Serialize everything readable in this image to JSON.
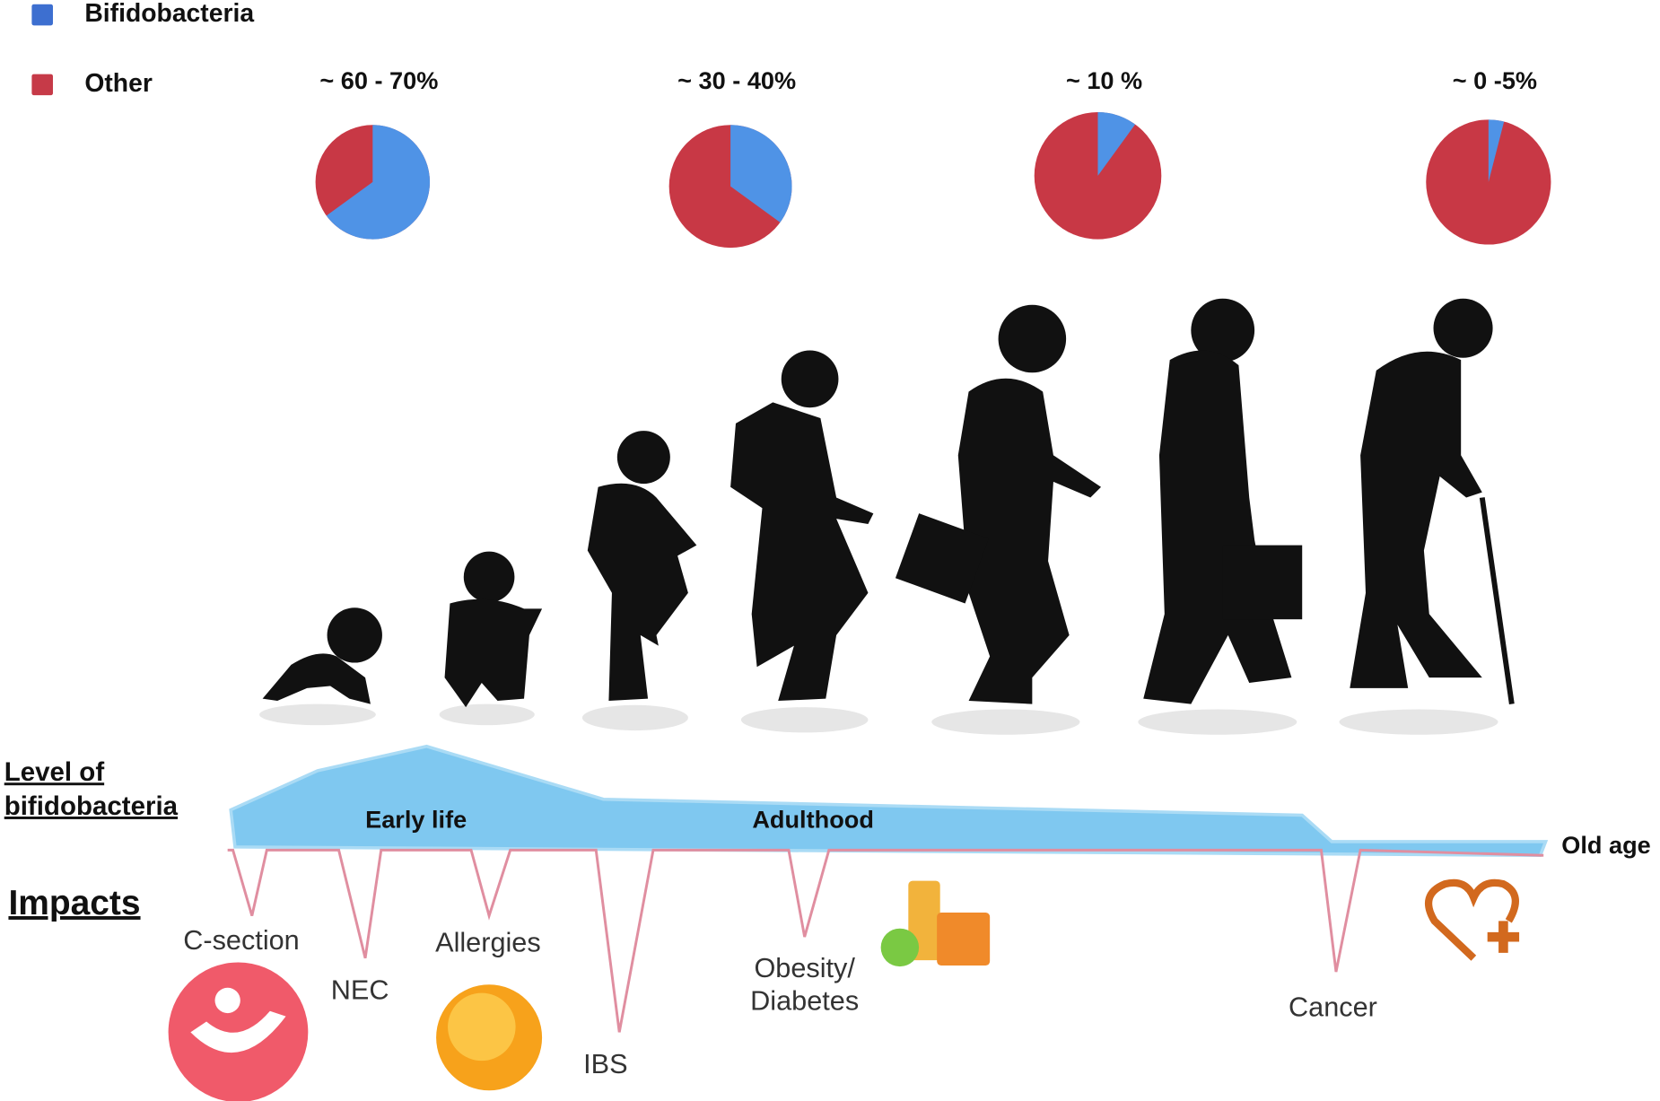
{
  "legend": [
    {
      "label": "Bifidobacteria",
      "color": "#3d6fd0"
    },
    {
      "label": "Other",
      "color": "#c63a48"
    }
  ],
  "pies": [
    {
      "label": "~ 60 - 70%",
      "value": 65,
      "color": "#4f93e6"
    },
    {
      "label": "~ 30 - 40%",
      "value": 35,
      "color": "#4f93e6"
    },
    {
      "label": "~ 10 %",
      "value": 10,
      "color": "#4f93e6"
    },
    {
      "label": "~ 0 -5%",
      "value": 4,
      "color": "#4f93e6"
    }
  ],
  "other_color": "#c83845",
  "level_label": [
    "Level of",
    "bifidobacteria"
  ],
  "phases": [
    "Early life",
    "Adulthood",
    "Old age"
  ],
  "impacts_label": "Impacts",
  "impacts": [
    "C-section",
    "NEC",
    "Allergies",
    "IBS",
    [
      "Obesity/",
      "Diabetes"
    ],
    "Cancer"
  ]
}
